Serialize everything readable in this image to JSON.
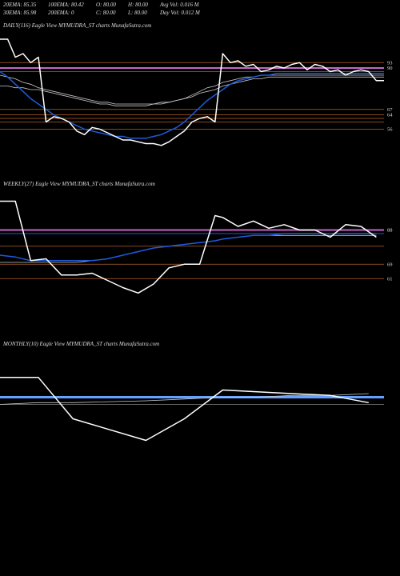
{
  "header": {
    "row1": [
      "20EMA: 85.35",
      "100EMA: 80.42",
      "O: 80.00",
      "H: 80.00",
      "Avg Vol: 0.016  M"
    ],
    "row2": [
      "30EMA: 85.98",
      "200EMA: 0",
      "C: 80.00",
      "L: 80.00",
      "Day Vol: 0.012  M"
    ]
  },
  "colors": {
    "background": "#000000",
    "price": "#ffffff",
    "ema_blue": "#1e5adc",
    "ema_white": "#c8c8c8",
    "magenta": "#c864c8",
    "orange": "#b46428",
    "light_blue": "#64a0ff"
  },
  "chart_data": [
    {
      "type": "line",
      "title": "DAILY(116) Eagle  View  MYMUDRA_ST charts MunafaSutra.com",
      "ylim": [
        30,
        110
      ],
      "yticks": [
        93,
        90,
        67,
        64,
        56
      ],
      "x": [
        0,
        2,
        4,
        6,
        8,
        10,
        12,
        14,
        16,
        18,
        20,
        22,
        24,
        26,
        28,
        30,
        32,
        34,
        36,
        38,
        40,
        42,
        44,
        46,
        48,
        50,
        52,
        54,
        56,
        58,
        60,
        62,
        64,
        66,
        68,
        70,
        72,
        74,
        76,
        78,
        80,
        82,
        84,
        86,
        88,
        90,
        92,
        94,
        96,
        98,
        100
      ],
      "series": [
        {
          "role": "price",
          "color": "#ffffff",
          "width": 1.5,
          "values": [
            106,
            106,
            96,
            98,
            93,
            96,
            60,
            63,
            62,
            60,
            55,
            53,
            57,
            56,
            54,
            52,
            50,
            50,
            49,
            48,
            48,
            47,
            49,
            52,
            55,
            60,
            62,
            63,
            60,
            98,
            93,
            94,
            91,
            92,
            88,
            89,
            91,
            90,
            92,
            93,
            89,
            92,
            91,
            88,
            89,
            86,
            88,
            89,
            88,
            83,
            83
          ]
        },
        {
          "role": "ema",
          "color": "#1e5adc",
          "width": 1.5,
          "values": [
            88,
            85,
            81,
            77,
            73,
            70,
            67,
            64,
            62,
            60,
            58,
            56,
            55,
            54,
            53,
            52,
            52,
            51,
            51,
            51,
            52,
            53,
            55,
            57,
            60,
            64,
            68,
            72,
            75,
            78,
            81,
            83,
            84,
            85,
            86,
            86,
            87,
            87,
            87,
            87,
            87,
            87,
            87,
            87,
            87,
            87,
            87,
            87,
            87,
            87,
            87
          ]
        },
        {
          "role": "ema",
          "color": "#c8c8c8",
          "width": 0.8,
          "values": [
            86,
            85,
            84,
            82,
            81,
            79,
            78,
            77,
            76,
            75,
            74,
            73,
            72,
            71,
            71,
            70,
            70,
            70,
            70,
            70,
            70,
            71,
            71,
            72,
            73,
            75,
            77,
            79,
            80,
            82,
            83,
            84,
            85,
            85,
            86,
            86,
            86,
            86,
            86,
            86,
            86,
            86,
            86,
            86,
            86,
            86,
            86,
            86,
            86,
            86,
            86
          ]
        },
        {
          "role": "ema",
          "color": "#c8c8c8",
          "width": 0.8,
          "values": [
            80,
            80,
            79,
            79,
            78,
            78,
            77,
            76,
            75,
            74,
            73,
            72,
            71,
            70,
            70,
            69,
            69,
            69,
            69,
            69,
            70,
            70,
            71,
            72,
            73,
            74,
            76,
            77,
            78,
            80,
            81,
            82,
            83,
            84,
            84,
            85,
            85,
            85,
            85,
            85,
            85,
            85,
            85,
            85,
            85,
            85,
            85,
            85,
            85,
            85,
            85
          ]
        }
      ],
      "hlines": [
        {
          "y": 93,
          "color": "#b46428",
          "width": 0.7
        },
        {
          "y": 90,
          "color": "#c864c8",
          "width": 2
        },
        {
          "y": 88,
          "color": "#1e5adc",
          "width": 1
        },
        {
          "y": 67,
          "color": "#b46428",
          "width": 0.7
        },
        {
          "y": 64,
          "color": "#b46428",
          "width": 0.7
        },
        {
          "y": 62,
          "color": "#b46428",
          "width": 0.7
        },
        {
          "y": 60,
          "color": "#b46428",
          "width": 0.7
        },
        {
          "y": 56,
          "color": "#b46428",
          "width": 0.7
        }
      ]
    },
    {
      "type": "line",
      "title": "WEEKLY(27) Eagle  View  MYMUDRA_ST charts MunafaSutra.com",
      "ylim": [
        30,
        110
      ],
      "yticks": [
        88,
        69,
        61
      ],
      "x": [
        0,
        4,
        8,
        12,
        16,
        20,
        24,
        28,
        32,
        36,
        40,
        44,
        48,
        52,
        56,
        58,
        62,
        66,
        70,
        74,
        78,
        82,
        86,
        90,
        94,
        98
      ],
      "series": [
        {
          "role": "price",
          "color": "#ffffff",
          "width": 1.5,
          "values": [
            104,
            104,
            71,
            72,
            63,
            63,
            64,
            60,
            56,
            53,
            58,
            67,
            69,
            69,
            96,
            95,
            90,
            93,
            89,
            91,
            88,
            88,
            84,
            91,
            90,
            84
          ]
        },
        {
          "role": "ema",
          "color": "#1e5adc",
          "width": 1.5,
          "values": [
            74,
            73,
            71,
            71,
            71,
            71,
            71,
            72,
            74,
            76,
            78,
            79,
            80,
            81,
            82,
            83,
            84,
            85,
            85,
            86,
            86,
            86,
            86,
            86,
            86,
            86
          ]
        },
        {
          "role": "ema",
          "color": "#c8c8c8",
          "width": 0.8,
          "values": [
            70,
            70,
            70,
            70,
            70,
            70,
            71,
            72,
            74,
            76,
            78,
            79,
            80,
            81,
            82,
            83,
            84,
            85,
            85,
            85,
            85,
            85,
            85,
            85,
            85,
            85
          ]
        }
      ],
      "hlines": [
        {
          "y": 88,
          "color": "#c864c8",
          "width": 2
        },
        {
          "y": 86,
          "color": "#1e5adc",
          "width": 1
        },
        {
          "y": 79,
          "color": "#b46428",
          "width": 0.7
        },
        {
          "y": 69,
          "color": "#b46428",
          "width": 0.7
        },
        {
          "y": 61,
          "color": "#b46428",
          "width": 0.7
        }
      ]
    },
    {
      "type": "line",
      "title": "MONTHLY(10) Eagle  View  MYMUDRA_ST charts MunafaSutra.com",
      "ylim": [
        30,
        110
      ],
      "yticks": [],
      "x": [
        0,
        10,
        19,
        38,
        48,
        58,
        67,
        76,
        86,
        96
      ],
      "series": [
        {
          "role": "price",
          "color": "#ffffff",
          "width": 1.5,
          "values": [
            95,
            95,
            72,
            60,
            72,
            88,
            87,
            86,
            85,
            81
          ]
        },
        {
          "role": "ema",
          "color": "#c8c8c8",
          "width": 0.8,
          "values": [
            80,
            81,
            81,
            82,
            83,
            84,
            84,
            85,
            85,
            86
          ]
        }
      ],
      "hlines": [
        {
          "y": 84,
          "color": "#64a0ff",
          "width": 3
        },
        {
          "y": 80,
          "color": "#c8c8c8",
          "width": 0.6
        }
      ]
    }
  ]
}
